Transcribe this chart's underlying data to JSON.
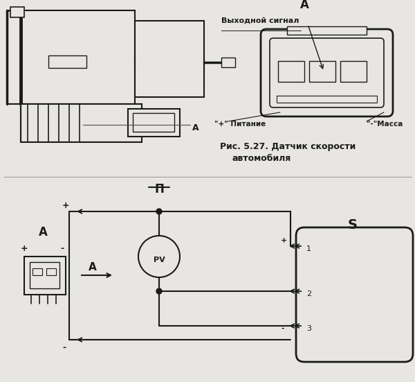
{
  "bg_color": "#e8e6e2",
  "line_color": "#1a1a1a",
  "title1": "Рис. 5.27. Датчик скорости",
  "title2": "автомобиля",
  "label_A_top": "А",
  "label_A_section": "А",
  "label_vykh": "Выходной сигнал",
  "label_plus_pit": "\"+\" Питание",
  "label_minus_mass": "\"-\"Масса",
  "label_II": "П",
  "label_A_circ": "А",
  "label_S": "S",
  "label_PV": "PV",
  "label_plus1": "+",
  "label_minus1": "-",
  "label_plus2": "+",
  "label_minus2": "-",
  "label_1": "1",
  "label_2": "2",
  "label_3": "3"
}
